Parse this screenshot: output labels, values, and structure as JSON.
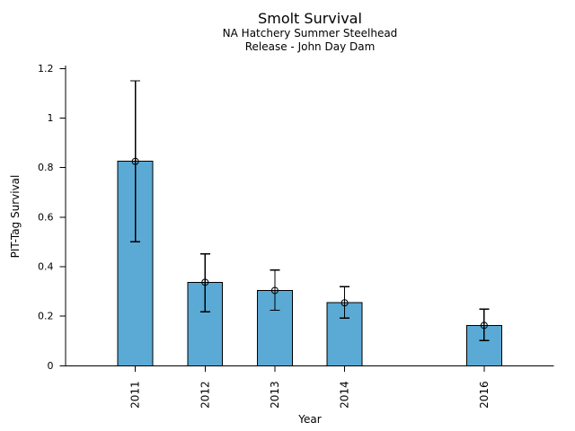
{
  "chart_data": {
    "type": "bar",
    "title": "Smolt Survival",
    "subtitle_line1": "NA Hatchery Summer Steelhead",
    "subtitle_line2": "Release - John Day Dam",
    "xlabel": "Year",
    "ylabel": "PIT-Tag Survival",
    "categories": [
      2011,
      2012,
      2013,
      2014,
      2016
    ],
    "series": [
      {
        "name": "PIT-Tag Survival",
        "values": [
          0.825,
          0.337,
          0.304,
          0.254,
          0.163
        ],
        "error_low": [
          0.5,
          0.218,
          0.224,
          0.192,
          0.102
        ],
        "error_high": [
          1.15,
          0.452,
          0.386,
          0.319,
          0.229
        ]
      }
    ],
    "xlim": [
      2010,
      2017
    ],
    "ylim": [
      0,
      1.2
    ],
    "yticks": {
      "values": [
        0,
        0.2,
        0.4,
        0.6,
        0.8,
        1,
        1.2
      ],
      "labels": [
        "0",
        "0.2",
        "0.4",
        "0.6",
        "0.8",
        "1",
        "1.2"
      ]
    },
    "xtick_labels": [
      "2011",
      "2012",
      "2013",
      "2014",
      "2016"
    ],
    "bar_width_years": 0.5,
    "grid": false,
    "legend": "none",
    "marker": "open-circle",
    "colors": {
      "bar_fill": "#5AAAD5",
      "bar_edge": "#000000",
      "error_bar": "#000000",
      "axis": "#000000",
      "text": "#000000",
      "background": "#ffffff"
    }
  }
}
